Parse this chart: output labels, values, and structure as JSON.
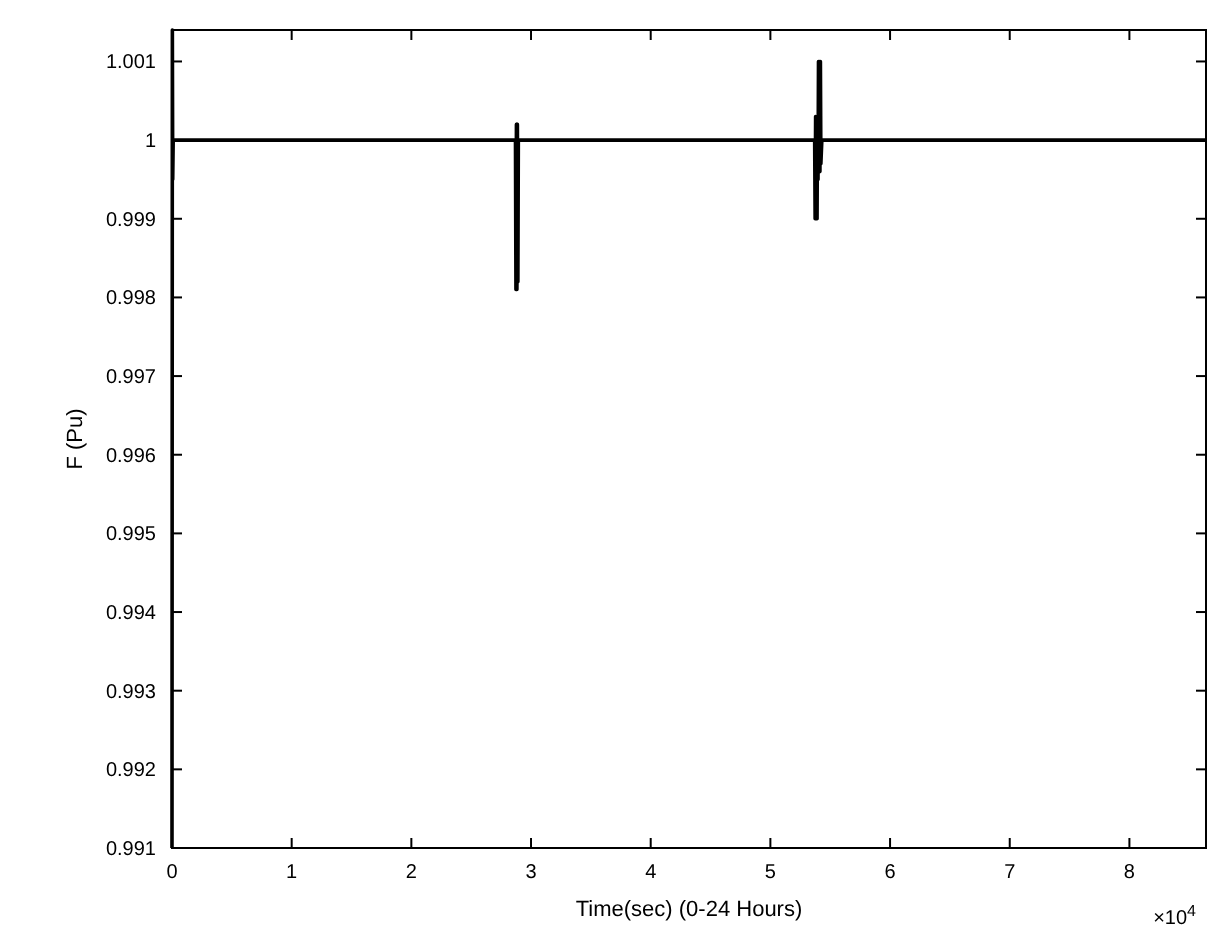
{
  "chart_data": {
    "type": "line",
    "xlabel": "Time(sec) (0-24 Hours)",
    "ylabel": "F (Pu)",
    "annotations": [
      "×10$^{4}$"
    ],
    "series": [
      {
        "color": "#000000",
        "x": [
          0,
          0.003,
          0.006,
          0.01,
          0.5,
          1,
          1.5,
          2,
          2.5,
          2.87,
          2.874,
          2.878,
          2.882,
          2.886,
          2.89,
          2.894,
          2.9,
          3.5,
          4,
          4.5,
          5,
          5.37,
          5.374,
          5.378,
          5.382,
          5.386,
          5.39,
          5.394,
          5.398,
          5.402,
          5.406,
          5.41,
          5.414,
          5.418,
          5.422,
          5.43,
          6,
          6.5,
          7,
          7.5,
          8,
          8.64
        ],
        "values": [
          0.991,
          1.0014,
          0.9995,
          1,
          1,
          1,
          1,
          1,
          1,
          1,
          0.9981,
          1.0002,
          0.9981,
          1.0002,
          0.9982,
          1,
          1,
          1,
          1,
          1,
          1,
          1,
          0.999,
          1.0003,
          0.999,
          1.0003,
          0.999,
          1.0003,
          0.9995,
          1.001,
          0.9996,
          1.001,
          0.9996,
          1.001,
          0.9997,
          1,
          1,
          1,
          1,
          1,
          1,
          1
        ]
      }
    ],
    "xlim": [
      0,
      8.64
    ],
    "xticks": [
      0,
      1,
      2,
      3,
      4,
      5,
      6,
      7,
      8
    ],
    "ylim": [
      0.991,
      1.0014
    ],
    "yticks": [
      0.991,
      0.992,
      0.993,
      0.994,
      0.995,
      0.996,
      0.997,
      0.998,
      0.999,
      1,
      1.001
    ],
    "grid": false,
    "marker": "none",
    "line_style": "solid"
  }
}
